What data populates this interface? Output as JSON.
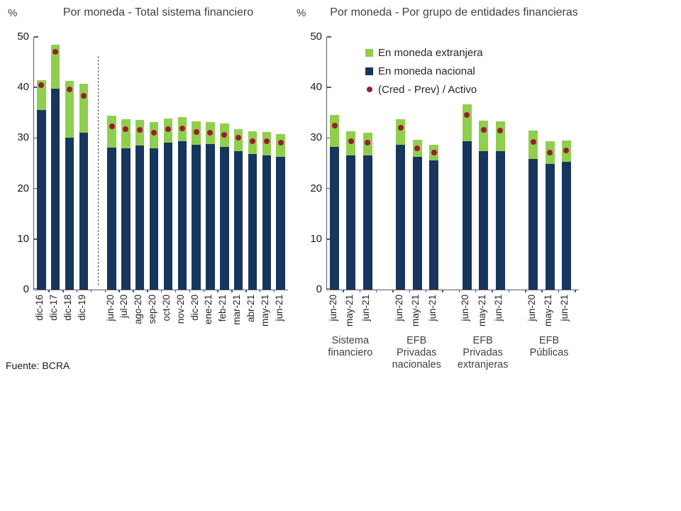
{
  "source": "Fuente: BCRA",
  "colors": {
    "foreign": "#90ce4e",
    "national": "#17365d",
    "dot": "#9c1b30",
    "axis": "#595959",
    "text": "#404040"
  },
  "legend": {
    "items": [
      {
        "label": "En moneda extranjera",
        "series": "foreign",
        "swatch": "square"
      },
      {
        "label": "En moneda nacional",
        "series": "national",
        "swatch": "square"
      },
      {
        "label": "(Cred - Prev) / Activo",
        "series": "dot",
        "swatch": "dot"
      }
    ]
  },
  "chart_data": [
    {
      "type": "bar",
      "stacked": true,
      "title": "Por moneda - Total sistema financiero",
      "ylabel": "%",
      "xlabel": "",
      "ylim": [
        0,
        50
      ],
      "yticks": [
        0,
        10,
        20,
        30,
        40,
        50
      ],
      "grid": false,
      "separator_after_index": 3,
      "categories": [
        "dic-16",
        "dic-17",
        "dic-18",
        "dic-19",
        "jun-20",
        "jul-20",
        "ago-20",
        "sep-20",
        "oct-20",
        "nov-20",
        "dic-20",
        "ene-21",
        "feb-21",
        "mar-21",
        "abr-21",
        "may-21",
        "jun-21"
      ],
      "series": [
        {
          "name": "En moneda nacional",
          "values": [
            35.5,
            39.7,
            30.1,
            31.0,
            28.1,
            28.0,
            28.5,
            28.0,
            29.1,
            29.3,
            28.7,
            28.8,
            28.3,
            27.4,
            26.8,
            26.5,
            26.3
          ]
        },
        {
          "name": "En moneda extranjera",
          "values": [
            6.0,
            8.7,
            11.2,
            9.8,
            6.3,
            5.7,
            5.1,
            5.2,
            4.8,
            4.8,
            4.6,
            4.4,
            4.5,
            4.4,
            4.5,
            4.7,
            4.5
          ]
        }
      ],
      "dot_series": {
        "name": "(Cred - Prev) / Activo",
        "values": [
          40.5,
          47.1,
          39.6,
          38.4,
          32.3,
          31.7,
          31.6,
          31.1,
          31.8,
          31.9,
          31.2,
          31.1,
          30.6,
          30.0,
          29.4,
          29.3,
          29.1
        ]
      }
    },
    {
      "type": "bar",
      "stacked": true,
      "title": "Por moneda - Por grupo de entidades financieras",
      "ylabel": "%",
      "xlabel": "",
      "ylim": [
        0,
        50
      ],
      "yticks": [
        0,
        10,
        20,
        30,
        40,
        50
      ],
      "grid": false,
      "groups": [
        {
          "label": [
            "Sistema",
            "financiero"
          ],
          "categories": [
            "jun-20",
            "may-21",
            "jun-21"
          ],
          "series": {
            "national": [
              28.3,
              26.6,
              26.5
            ],
            "foreign": [
              6.2,
              4.7,
              4.6
            ]
          },
          "dots": [
            32.4,
            29.4,
            29.1
          ]
        },
        {
          "label": [
            "EFB",
            "Privadas",
            "nacionales"
          ],
          "categories": [
            "jun-20",
            "may-21",
            "jun-21"
          ],
          "series": {
            "national": [
              28.6,
              26.2,
              25.5
            ],
            "foreign": [
              5.1,
              3.4,
              3.2
            ]
          },
          "dots": [
            32.0,
            27.9,
            27.1
          ]
        },
        {
          "label": [
            "EFB",
            "Privadas",
            "extranjeras"
          ],
          "categories": [
            "jun-20",
            "may-21",
            "jun-21"
          ],
          "series": {
            "national": [
              29.4,
              27.4,
              27.4
            ],
            "foreign": [
              7.3,
              6.0,
              5.9
            ]
          },
          "dots": [
            34.6,
            31.6,
            31.5
          ]
        },
        {
          "label": [
            "EFB",
            "Públicas"
          ],
          "categories": [
            "jun-20",
            "may-21",
            "jun-21"
          ],
          "series": {
            "national": [
              25.8,
              24.9,
              25.3
            ],
            "foreign": [
              5.7,
              4.4,
              4.2
            ]
          },
          "dots": [
            29.2,
            27.1,
            27.5
          ]
        }
      ]
    }
  ]
}
